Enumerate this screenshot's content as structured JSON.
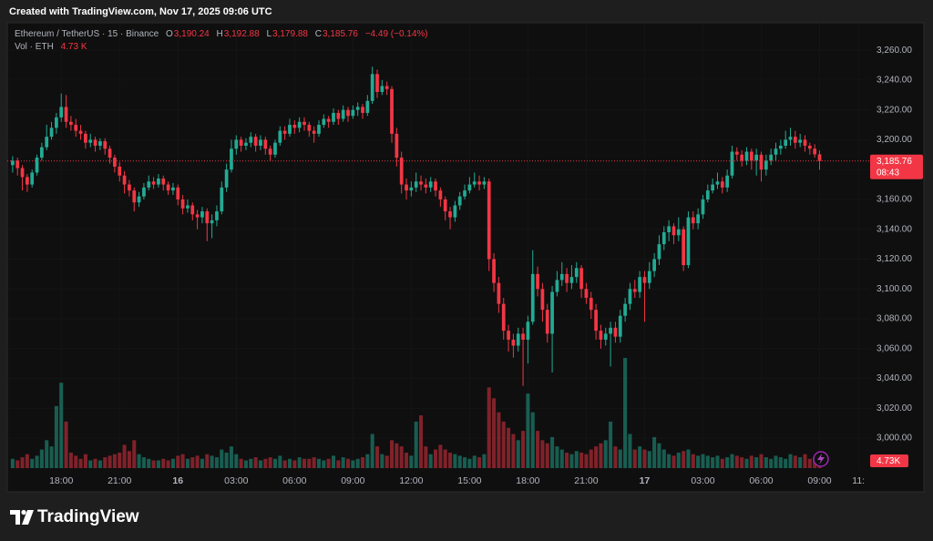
{
  "header": {
    "created": "Created with TradingView.com, Nov 17, 2025 09:06 UTC"
  },
  "footer": {
    "brand": "TradingView"
  },
  "chart_data": {
    "type": "candlestick",
    "title": "Ethereum / TetherUS · 15 · Binance",
    "ohlc_legend": [
      {
        "key": "O",
        "value": "3,190.24"
      },
      {
        "key": "H",
        "value": "3,192.88"
      },
      {
        "key": "L",
        "value": "3,179.88"
      },
      {
        "key": "C",
        "value": "3,185.76"
      }
    ],
    "change": "−4.49 (−0.14%)",
    "volume_legend": {
      "label": "Vol · ETH",
      "value": "4.73 K"
    },
    "up_color": "#22ab94",
    "down_color": "#f23645",
    "open": [
      3183,
      3186,
      3181,
      3175,
      3170,
      3178,
      3188,
      3195,
      3202,
      3208,
      3215,
      3222,
      3212,
      3210,
      3206,
      3204,
      3198,
      3200,
      3196,
      3199,
      3194,
      3188,
      3182,
      3176,
      3170,
      3166,
      3158,
      3162,
      3168,
      3172,
      3170,
      3174,
      3170,
      3166,
      3168,
      3160,
      3154,
      3156,
      3150,
      3148,
      3152,
      3144,
      3146,
      3152,
      3168,
      3180,
      3194,
      3200,
      3196,
      3198,
      3202,
      3196,
      3200,
      3194,
      3190,
      3198,
      3206,
      3204,
      3210,
      3208,
      3212,
      3210,
      3206,
      3204,
      3210,
      3214,
      3212,
      3218,
      3214,
      3220,
      3216,
      3220,
      3222,
      3218,
      3226,
      3244,
      3232,
      3236,
      3234,
      3204,
      3188,
      3170,
      3166,
      3168,
      3172,
      3170,
      3168,
      3172,
      3166,
      3160,
      3152,
      3148,
      3156,
      3162,
      3166,
      3170,
      3172,
      3170,
      3172,
      3120,
      3104,
      3090,
      3072,
      3066,
      3062,
      3070,
      3066,
      3078,
      3110,
      3100,
      3086,
      3070,
      3098,
      3106,
      3110,
      3104,
      3108,
      3114,
      3100,
      3094,
      3086,
      3072,
      3066,
      3070,
      3074,
      3068,
      3082,
      3090,
      3100,
      3098,
      3108,
      3104,
      3112,
      3120,
      3130,
      3138,
      3142,
      3136,
      3140,
      3116,
      3148,
      3144,
      3150,
      3160,
      3166,
      3170,
      3172,
      3168,
      3176,
      3192,
      3190,
      3186,
      3192,
      3186,
      3190,
      3180,
      3186,
      3190,
      3194,
      3196,
      3200,
      3202,
      3198,
      3200,
      3196,
      3194,
      3190.24
    ],
    "high": [
      3189,
      3188,
      3183,
      3177,
      3180,
      3190,
      3198,
      3210,
      3212,
      3218,
      3231,
      3230,
      3216,
      3214,
      3210,
      3206,
      3204,
      3202,
      3201,
      3201,
      3196,
      3190,
      3185,
      3179,
      3173,
      3168,
      3165,
      3171,
      3176,
      3175,
      3177,
      3176,
      3172,
      3171,
      3170,
      3163,
      3160,
      3158,
      3153,
      3155,
      3154,
      3150,
      3156,
      3172,
      3184,
      3200,
      3203,
      3202,
      3201,
      3205,
      3204,
      3203,
      3202,
      3196,
      3200,
      3209,
      3209,
      3214,
      3213,
      3215,
      3215,
      3212,
      3209,
      3213,
      3217,
      3216,
      3221,
      3220,
      3223,
      3222,
      3223,
      3225,
      3224,
      3230,
      3249,
      3247,
      3240,
      3239,
      3236,
      3208,
      3192,
      3174,
      3172,
      3178,
      3176,
      3174,
      3175,
      3174,
      3168,
      3162,
      3155,
      3159,
      3165,
      3170,
      3175,
      3178,
      3176,
      3175,
      3174,
      3124,
      3108,
      3094,
      3076,
      3070,
      3074,
      3074,
      3082,
      3126,
      3115,
      3104,
      3090,
      3102,
      3112,
      3118,
      3114,
      3116,
      3118,
      3116,
      3104,
      3098,
      3090,
      3076,
      3074,
      3078,
      3078,
      3086,
      3094,
      3104,
      3106,
      3112,
      3112,
      3118,
      3124,
      3136,
      3142,
      3146,
      3144,
      3148,
      3142,
      3152,
      3152,
      3154,
      3163,
      3170,
      3174,
      3178,
      3175,
      3180,
      3196,
      3195,
      3193,
      3195,
      3194,
      3194,
      3192,
      3190,
      3194,
      3198,
      3200,
      3206,
      3208,
      3206,
      3204,
      3203,
      3198,
      3197,
      3192.88
    ],
    "low": [
      3178,
      3176,
      3166,
      3165,
      3168,
      3176,
      3186,
      3193,
      3200,
      3204,
      3212,
      3208,
      3206,
      3202,
      3200,
      3194,
      3195,
      3192,
      3193,
      3190,
      3184,
      3178,
      3172,
      3164,
      3162,
      3152,
      3155,
      3160,
      3166,
      3167,
      3168,
      3166,
      3163,
      3163,
      3156,
      3150,
      3151,
      3146,
      3140,
      3144,
      3132,
      3134,
      3142,
      3150,
      3165,
      3178,
      3190,
      3192,
      3193,
      3195,
      3192,
      3193,
      3190,
      3186,
      3188,
      3196,
      3200,
      3202,
      3204,
      3205,
      3206,
      3202,
      3198,
      3202,
      3208,
      3208,
      3210,
      3210,
      3212,
      3212,
      3214,
      3216,
      3214,
      3216,
      3224,
      3228,
      3230,
      3230,
      3198,
      3182,
      3164,
      3160,
      3162,
      3165,
      3166,
      3164,
      3165,
      3162,
      3155,
      3146,
      3140,
      3145,
      3153,
      3160,
      3164,
      3168,
      3166,
      3167,
      3112,
      3098,
      3084,
      3066,
      3058,
      3054,
      3058,
      3035,
      3050,
      3076,
      3095,
      3078,
      3064,
      3044,
      3095,
      3102,
      3098,
      3100,
      3104,
      3094,
      3090,
      3080,
      3066,
      3060,
      3062,
      3048,
      3064,
      3064,
      3078,
      3086,
      3094,
      3094,
      3078,
      3100,
      3108,
      3116,
      3126,
      3132,
      3130,
      3132,
      3112,
      3114,
      3140,
      3140,
      3147,
      3158,
      3164,
      3167,
      3164,
      3165,
      3174,
      3186,
      3182,
      3183,
      3180,
      3176,
      3172,
      3176,
      3183,
      3186,
      3190,
      3194,
      3196,
      3194,
      3195,
      3192,
      3190,
      3188,
      3179.88
    ],
    "close": [
      3186,
      3181,
      3175,
      3170,
      3178,
      3188,
      3195,
      3202,
      3208,
      3215,
      3222,
      3212,
      3210,
      3206,
      3204,
      3198,
      3200,
      3196,
      3199,
      3194,
      3188,
      3182,
      3176,
      3170,
      3166,
      3158,
      3162,
      3168,
      3172,
      3170,
      3174,
      3170,
      3166,
      3168,
      3160,
      3154,
      3156,
      3150,
      3148,
      3152,
      3144,
      3146,
      3152,
      3168,
      3180,
      3194,
      3200,
      3196,
      3198,
      3202,
      3196,
      3200,
      3194,
      3190,
      3198,
      3206,
      3204,
      3210,
      3208,
      3212,
      3210,
      3206,
      3204,
      3210,
      3214,
      3212,
      3218,
      3214,
      3220,
      3216,
      3220,
      3222,
      3218,
      3226,
      3244,
      3232,
      3236,
      3234,
      3204,
      3188,
      3170,
      3166,
      3168,
      3172,
      3170,
      3168,
      3172,
      3166,
      3160,
      3152,
      3148,
      3156,
      3162,
      3166,
      3170,
      3172,
      3170,
      3172,
      3120,
      3104,
      3090,
      3072,
      3066,
      3062,
      3070,
      3066,
      3078,
      3110,
      3100,
      3086,
      3070,
      3098,
      3106,
      3110,
      3104,
      3108,
      3114,
      3100,
      3094,
      3086,
      3072,
      3066,
      3070,
      3074,
      3068,
      3082,
      3090,
      3100,
      3098,
      3108,
      3104,
      3112,
      3120,
      3130,
      3138,
      3142,
      3136,
      3140,
      3116,
      3148,
      3144,
      3150,
      3160,
      3166,
      3170,
      3172,
      3168,
      3176,
      3192,
      3190,
      3186,
      3192,
      3186,
      3190,
      3180,
      3186,
      3190,
      3194,
      3196,
      3200,
      3202,
      3198,
      3200,
      3196,
      3194,
      3190.24,
      3185.76
    ],
    "volume": [
      6000,
      5000,
      7000,
      9000,
      6000,
      8000,
      12000,
      18000,
      14000,
      40000,
      55000,
      30000,
      10000,
      8000,
      6000,
      9000,
      5000,
      6000,
      5000,
      7000,
      8000,
      9000,
      10000,
      15000,
      11000,
      18000,
      9000,
      7000,
      6000,
      5000,
      5000,
      6000,
      5000,
      6000,
      8000,
      9000,
      6000,
      7000,
      8000,
      6000,
      9000,
      8000,
      7000,
      12000,
      10000,
      14000,
      9000,
      6000,
      5000,
      6000,
      7000,
      5000,
      6000,
      7000,
      6000,
      8000,
      5000,
      6000,
      5000,
      7000,
      6000,
      6000,
      7000,
      6000,
      5000,
      6000,
      8000,
      5000,
      7000,
      6000,
      5000,
      6000,
      7000,
      9000,
      22000,
      14000,
      9000,
      8000,
      18000,
      16000,
      14000,
      10000,
      8000,
      30000,
      34000,
      14000,
      9000,
      12000,
      15000,
      12000,
      10000,
      9000,
      8000,
      7000,
      6000,
      8000,
      7000,
      9000,
      52000,
      45000,
      36000,
      30000,
      26000,
      22000,
      18000,
      24000,
      48000,
      36000,
      24000,
      18000,
      16000,
      20000,
      14000,
      12000,
      10000,
      9000,
      11000,
      10000,
      9000,
      12000,
      14000,
      16000,
      18000,
      30000,
      14000,
      12000,
      71000,
      22000,
      12000,
      14000,
      12000,
      11000,
      20000,
      16000,
      12000,
      9000,
      8000,
      10000,
      11000,
      12000,
      9000,
      8000,
      9000,
      8000,
      7000,
      8000,
      6000,
      7000,
      9000,
      8000,
      7000,
      6000,
      8000,
      7000,
      9000,
      7000,
      6000,
      8000,
      7000,
      6000,
      9000,
      8000,
      7000,
      9000,
      6000,
      7000,
      4730
    ],
    "xlim": [
      -1.1,
      176.4
    ],
    "xticks": [
      {
        "value": 10,
        "label": "18:00"
      },
      {
        "value": 22,
        "label": "21:00"
      },
      {
        "value": 34,
        "label": "16"
      },
      {
        "value": 46,
        "label": "03:00"
      },
      {
        "value": 58,
        "label": "06:00"
      },
      {
        "value": 70,
        "label": "09:00"
      },
      {
        "value": 82,
        "label": "12:00"
      },
      {
        "value": 94,
        "label": "15:00"
      },
      {
        "value": 106,
        "label": "18:00"
      },
      {
        "value": 118,
        "label": "21:00"
      },
      {
        "value": 130,
        "label": "17"
      },
      {
        "value": 142,
        "label": "03:00"
      },
      {
        "value": 154,
        "label": "06:00"
      },
      {
        "value": 166,
        "label": "09:00"
      },
      {
        "value": 174,
        "label": "11:"
      }
    ],
    "ylim": [
      2979.9,
      3278.4
    ],
    "yticks": [
      {
        "value": 3000,
        "label": "3,000.00"
      },
      {
        "value": 3020,
        "label": "3,020.00"
      },
      {
        "value": 3040,
        "label": "3,040.00"
      },
      {
        "value": 3060,
        "label": "3,060.00"
      },
      {
        "value": 3080,
        "label": "3,080.00"
      },
      {
        "value": 3100,
        "label": "3,100.00"
      },
      {
        "value": 3120,
        "label": "3,120.00"
      },
      {
        "value": 3140,
        "label": "3,140.00"
      },
      {
        "value": 3160,
        "label": "3,160.00"
      },
      {
        "value": 3180,
        "label": "3,180.00"
      },
      {
        "value": 3200,
        "label": "3,200.00"
      },
      {
        "value": 3220,
        "label": "3,220.00"
      },
      {
        "value": 3240,
        "label": "3,240.00"
      },
      {
        "value": 3260,
        "label": "3,260.00"
      }
    ],
    "last_price": {
      "value": 3185.76,
      "label": "3,185.76",
      "countdown": "08:43"
    },
    "last_volume_label": "4.73K"
  }
}
